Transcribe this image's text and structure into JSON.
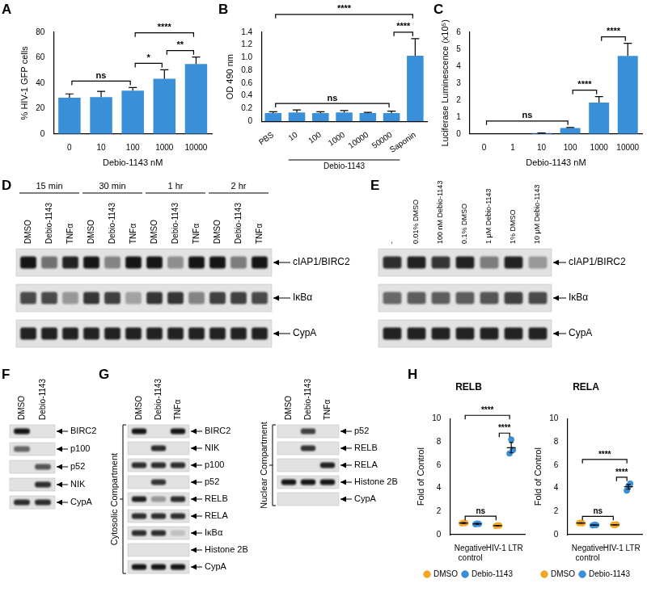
{
  "chart_data": [
    {
      "panel": "A",
      "type": "bar",
      "categories": [
        "0",
        "10",
        "100",
        "1000",
        "10000"
      ],
      "values": [
        28.5,
        29,
        34,
        43.5,
        55
      ],
      "errors": [
        3,
        4.5,
        2.5,
        7,
        5.5
      ],
      "color": "#3a8fd9",
      "x_label": "Debio-1143 nM",
      "y_label": "% HIV-1 GFP cells",
      "ylim": [
        0,
        80
      ],
      "yticks": [
        0,
        20,
        40,
        60,
        80
      ],
      "grid": false,
      "annotations": [
        {
          "from": "0",
          "to": "100",
          "label": "ns"
        },
        {
          "from": "100",
          "to": "1000",
          "label": "*"
        },
        {
          "from": "1000",
          "to": "10000",
          "label": "**"
        },
        {
          "from": "100",
          "to": "10000",
          "label": "****"
        }
      ]
    },
    {
      "panel": "B",
      "type": "bar",
      "categories": [
        "PBS",
        "10",
        "100",
        "1000",
        "10000",
        "50000",
        "Saponin"
      ],
      "values": [
        0.13,
        0.14,
        0.13,
        0.14,
        0.13,
        0.13,
        1.03
      ],
      "errors": [
        0.02,
        0.04,
        0.02,
        0.03,
        0.01,
        0.03,
        0.27
      ],
      "color": "#3a8fd9",
      "y_label": "OD 490 nm",
      "x_group": {
        "label": "Debio-1143",
        "from": "10",
        "to": "50000"
      },
      "ylim": [
        0,
        1.4
      ],
      "yticks": [
        0,
        0.2,
        0.4,
        0.6,
        0.8,
        {
          "value": 1,
          "label": "1.0"
        },
        1.2,
        1.4
      ],
      "grid": false,
      "annotations": [
        {
          "from": "PBS",
          "to": "50000",
          "label": "ns"
        },
        {
          "from": "50000",
          "to": "Saponin",
          "label": "****"
        },
        {
          "from": "PBS",
          "to": "Saponin",
          "label": "****"
        }
      ]
    },
    {
      "panel": "C",
      "type": "bar",
      "categories": [
        "0",
        "1",
        "10",
        "100",
        "1000",
        "10000"
      ],
      "values": [
        0,
        0.005,
        0.05,
        0.35,
        1.85,
        4.6
      ],
      "errors": [
        0,
        0,
        0.01,
        0.03,
        0.35,
        0.75
      ],
      "color": "#3a8fd9",
      "x_label": "Debio-1143 nM",
      "y_label": "Luciferase Luminescence (x10⁵)",
      "ylim": [
        0,
        6
      ],
      "yticks": [
        0,
        1,
        2,
        3,
        4,
        5,
        6
      ],
      "grid": false,
      "annotations": [
        {
          "from": "0",
          "to": "100",
          "label": "ns"
        },
        {
          "from": "100",
          "to": "1000",
          "label": "****"
        },
        {
          "from": "1000",
          "to": "10000",
          "label": "****"
        }
      ]
    },
    {
      "panel": "H",
      "type": "scatter",
      "title": "RELB",
      "marker": "circle",
      "categories": [
        "Negative control",
        "HIV-1 LTR"
      ],
      "y_label": "Fold of Control",
      "ylim": [
        0,
        10
      ],
      "yticks": [
        0,
        2,
        4,
        6,
        8,
        10
      ],
      "grid": false,
      "legend": "bottom",
      "series": [
        {
          "name": "DMSO",
          "color": "#f5a623",
          "values": [
            1.0,
            0.78
          ],
          "errors": [
            0.03,
            0.02
          ],
          "points": [
            [
              0.98,
              1.02,
              1.0
            ],
            [
              0.75,
              0.8,
              0.78
            ]
          ]
        },
        {
          "name": "Debio-1143",
          "color": "#3a8fd9",
          "values": [
            0.93,
            7.5
          ],
          "errors": [
            0.03,
            0.45
          ],
          "points": [
            [
              0.9,
              0.95,
              0.93
            ],
            [
              7.0,
              8.2,
              7.3
            ]
          ]
        }
      ],
      "annotations": [
        {
          "from": [
            "Negative control",
            "DMSO"
          ],
          "to": [
            "HIV-1 LTR",
            "DMSO"
          ],
          "label": "ns"
        },
        {
          "from": [
            "HIV-1 LTR",
            "DMSO"
          ],
          "to": [
            "HIV-1 LTR",
            "Debio-1143"
          ],
          "label": "****"
        },
        {
          "from": [
            "Negative control",
            "DMSO"
          ],
          "to": [
            "HIV-1 LTR",
            "Debio-1143"
          ],
          "label": "****"
        }
      ]
    },
    {
      "type": "scatter",
      "title": "RELA",
      "marker": "circle",
      "categories": [
        "Negative control",
        "HIV-1 LTR"
      ],
      "y_label": "Fold of Control",
      "ylim": [
        0,
        10
      ],
      "yticks": [
        0,
        2,
        4,
        6,
        8,
        10
      ],
      "grid": false,
      "legend": "bottom",
      "series": [
        {
          "name": "DMSO",
          "color": "#f5a623",
          "values": [
            1.0,
            0.85
          ],
          "errors": [
            0.02,
            0.02
          ],
          "points": [
            [
              1.0,
              1.02,
              0.98
            ],
            [
              0.85,
              0.82,
              0.88
            ]
          ]
        },
        {
          "name": "Debio-1143",
          "color": "#3a8fd9",
          "values": [
            0.83,
            4.13
          ],
          "errors": [
            0.02,
            0.2
          ],
          "points": [
            [
              0.8,
              0.85,
              0.83
            ],
            [
              3.8,
              4.2,
              4.4
            ]
          ]
        }
      ],
      "annotations": [
        {
          "from": [
            "Negative control",
            "DMSO"
          ],
          "to": [
            "HIV-1 LTR",
            "DMSO"
          ],
          "label": "ns"
        },
        {
          "from": [
            "HIV-1 LTR",
            "DMSO"
          ],
          "to": [
            "HIV-1 LTR",
            "Debio-1143"
          ],
          "label": "****"
        },
        {
          "from": [
            "Negative control",
            "DMSO"
          ],
          "to": [
            "HIV-1 LTR",
            "Debio-1143"
          ],
          "label": "****"
        }
      ]
    }
  ],
  "blots": [
    {
      "panel": "D",
      "groups": [
        {
          "label": "15 min",
          "lanes": [
            "DMSO",
            "Debio-1143",
            "TNFα"
          ]
        },
        {
          "label": "30 min",
          "lanes": [
            "DMSO",
            "Debio-1143",
            "TNFα"
          ]
        },
        {
          "label": "1 hr",
          "lanes": [
            "DMSO",
            "Debio-1143",
            "TNFα"
          ]
        },
        {
          "label": "2 hr",
          "lanes": [
            "DMSO",
            "Debio-1143",
            "TNFα"
          ]
        }
      ],
      "rows": [
        {
          "label": "cIAP1/BIRC2",
          "intensity": [
            1,
            0.55,
            0.95,
            1,
            0.45,
            1,
            1,
            0.4,
            1,
            1,
            0.5,
            1
          ]
        },
        {
          "label": "IκBα",
          "intensity": [
            0.75,
            0.75,
            0.35,
            0.85,
            0.8,
            0.3,
            0.85,
            0.85,
            0.45,
            0.8,
            0.8,
            0.75
          ]
        },
        {
          "label": "CypA",
          "intensity": [
            0.95,
            0.95,
            0.95,
            0.95,
            0.95,
            0.95,
            0.95,
            0.95,
            0.95,
            0.95,
            0.95,
            0.95
          ]
        }
      ]
    },
    {
      "panel": "E",
      "lanes": [
        "-",
        "0.01% DMSO",
        "100 nM Debio-1143",
        "0.1% DMSO",
        "1 μM Debio-1143",
        "1% DMSO",
        "10 μM Debio-1143"
      ],
      "rows": [
        {
          "label": "cIAP1/BIRC2",
          "intensity": [
            0.9,
            0.95,
            0.85,
            0.95,
            0.5,
            0.95,
            0.35
          ]
        },
        {
          "label": "IκBα",
          "intensity": [
            0.6,
            0.65,
            0.65,
            0.65,
            0.7,
            0.8,
            0.75
          ]
        },
        {
          "label": "CypA",
          "intensity": [
            0.95,
            0.95,
            0.95,
            0.95,
            0.95,
            0.95,
            0.95
          ]
        }
      ]
    },
    {
      "panel": "F",
      "lanes": [
        "DMSO",
        "Debio-1143"
      ],
      "rows": [
        {
          "label": "BIRC2",
          "intensity": [
            1,
            0
          ]
        },
        {
          "label": "p100",
          "intensity": [
            0.6,
            0
          ]
        },
        {
          "label": "p52",
          "intensity": [
            0,
            0.7
          ]
        },
        {
          "label": "NIK",
          "intensity": [
            0,
            0.9
          ]
        },
        {
          "label": "CypA",
          "intensity": [
            0.9,
            0.9
          ]
        }
      ]
    },
    {
      "panel": "G",
      "compartments": [
        {
          "label": "Cytosolic Compartment",
          "lanes": [
            "DMSO",
            "Debio-1143",
            "TNFα"
          ],
          "rows": [
            {
              "label": "BIRC2",
              "intensity": [
                1,
                0,
                1
              ]
            },
            {
              "label": "NIK",
              "intensity": [
                0,
                0.9,
                0
              ]
            },
            {
              "label": "p100",
              "intensity": [
                0.9,
                0.9,
                0.9
              ]
            },
            {
              "label": "p52",
              "intensity": [
                0,
                0.85,
                0
              ]
            },
            {
              "label": "RELB",
              "intensity": [
                0.95,
                0.35,
                0.9
              ]
            },
            {
              "label": "RELA",
              "intensity": [
                0.9,
                0.9,
                0.9
              ]
            },
            {
              "label": "IκBα",
              "intensity": [
                0.9,
                0.9,
                0.15
              ]
            },
            {
              "label": "Histone 2B",
              "intensity": [
                0,
                0,
                0
              ]
            },
            {
              "label": "CypA",
              "intensity": [
                1,
                1,
                1
              ]
            }
          ]
        },
        {
          "label": "Nuclear Compartment",
          "lanes": [
            "DMSO",
            "Debio-1143",
            "TNFα"
          ],
          "rows": [
            {
              "label": "p52",
              "intensity": [
                0,
                0.8,
                0
              ]
            },
            {
              "label": "RELB",
              "intensity": [
                0,
                0.85,
                0
              ]
            },
            {
              "label": "RELA",
              "intensity": [
                0,
                0,
                0.95
              ]
            },
            {
              "label": "Histone 2B",
              "intensity": [
                1,
                1,
                1
              ]
            },
            {
              "label": "CypA",
              "intensity": [
                0,
                0,
                0
              ]
            }
          ]
        }
      ]
    }
  ]
}
